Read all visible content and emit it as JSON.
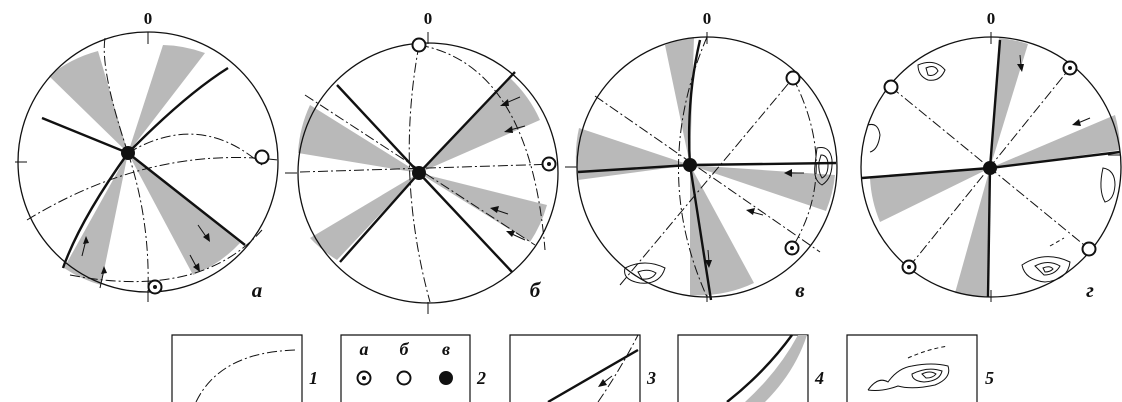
{
  "figure": {
    "north_label": "0",
    "panels": [
      {
        "id": "a",
        "label": "а"
      },
      {
        "id": "b",
        "label": "б"
      },
      {
        "id": "v",
        "label": "в"
      },
      {
        "id": "g",
        "label": "г"
      }
    ]
  },
  "legend": {
    "items": [
      {
        "num": "1",
        "name": "great-circle-dashdot"
      },
      {
        "num": "2",
        "name": "axis-symbols",
        "sublabels": [
          "а",
          "б",
          "в"
        ]
      },
      {
        "num": "3",
        "name": "fault-plane-slip-arrow"
      },
      {
        "num": "4",
        "name": "shaded-sector"
      },
      {
        "num": "5",
        "name": "density-contours"
      }
    ]
  },
  "colors": {
    "ink": "#111111",
    "shade": "#b9b9b9"
  }
}
